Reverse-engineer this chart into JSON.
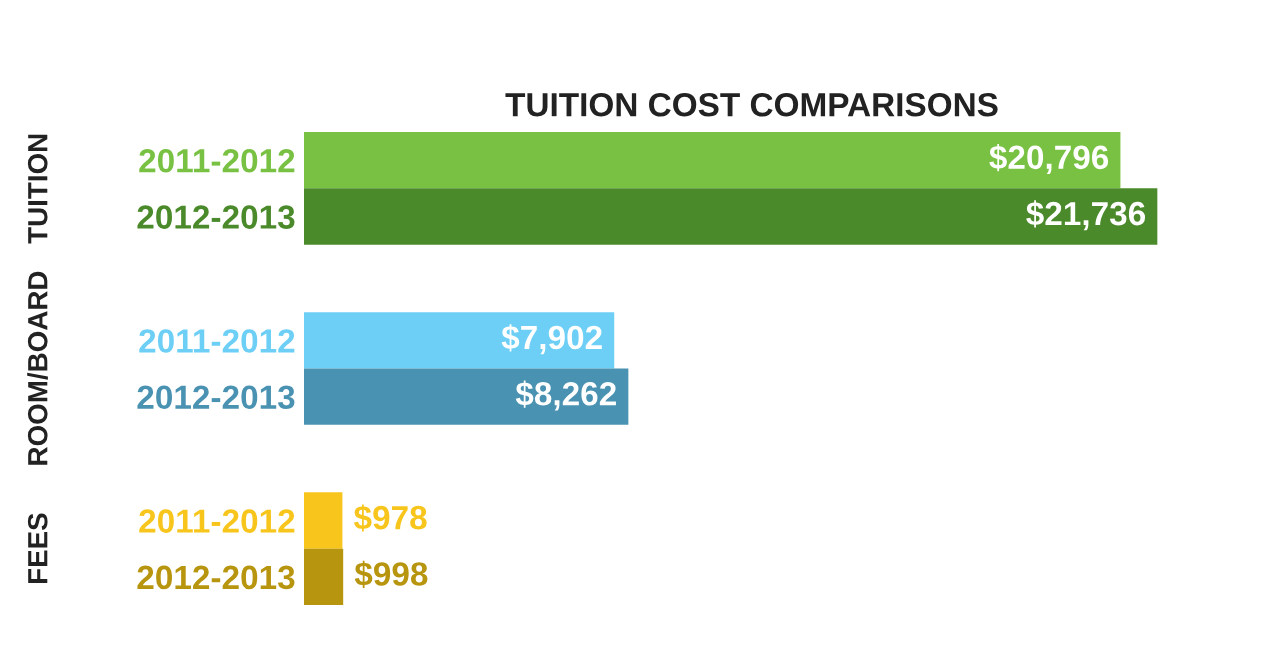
{
  "chart_data": {
    "type": "bar",
    "orientation": "horizontal",
    "title": "TUITION COST COMPARISONS",
    "categories": [
      "2011-2012",
      "2012-2013",
      "2011-2012",
      "2012-2013",
      "2011-2012",
      "2012-2013"
    ],
    "values": [
      20796,
      21736,
      7902,
      8262,
      978,
      998
    ],
    "colors": [
      "#78c143",
      "#4b8a2b",
      "#6dcff6",
      "#4a92b2",
      "#f7c51b",
      "#b8950e"
    ],
    "value_labels": [
      "$20,796",
      "$21,736",
      "$7,902",
      "$8,262",
      "$978",
      "$998"
    ],
    "annotations": [
      "TUITION",
      "ROOM/BOARD",
      "FEES"
    ],
    "grid": false,
    "legend": false
  }
}
